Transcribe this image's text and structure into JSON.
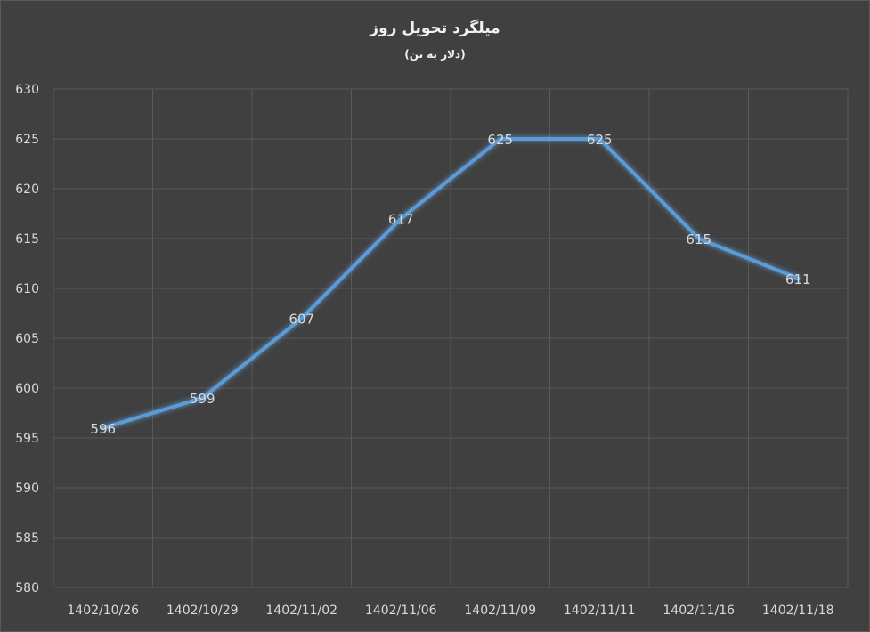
{
  "chart_data": {
    "type": "line",
    "title": "میلگرد تحویل روز",
    "subtitle": "(دلار به تن)",
    "categories": [
      "1402/10/26",
      "1402/10/29",
      "1402/11/02",
      "1402/11/06",
      "1402/11/09",
      "1402/11/11",
      "1402/11/16",
      "1402/11/18"
    ],
    "series": [
      {
        "values": [
          596,
          599,
          607,
          617,
          625,
          625,
          615,
          611
        ],
        "color": "#5b9bd5"
      }
    ],
    "ylim": [
      580,
      630
    ],
    "yticks": [
      580,
      585,
      590,
      595,
      600,
      605,
      610,
      615,
      620,
      625,
      630
    ],
    "grid": true,
    "data_labels": true,
    "legend": "none",
    "colors": {
      "background": "#404040",
      "grid": "#595959",
      "text": "#d9d9d9"
    }
  }
}
